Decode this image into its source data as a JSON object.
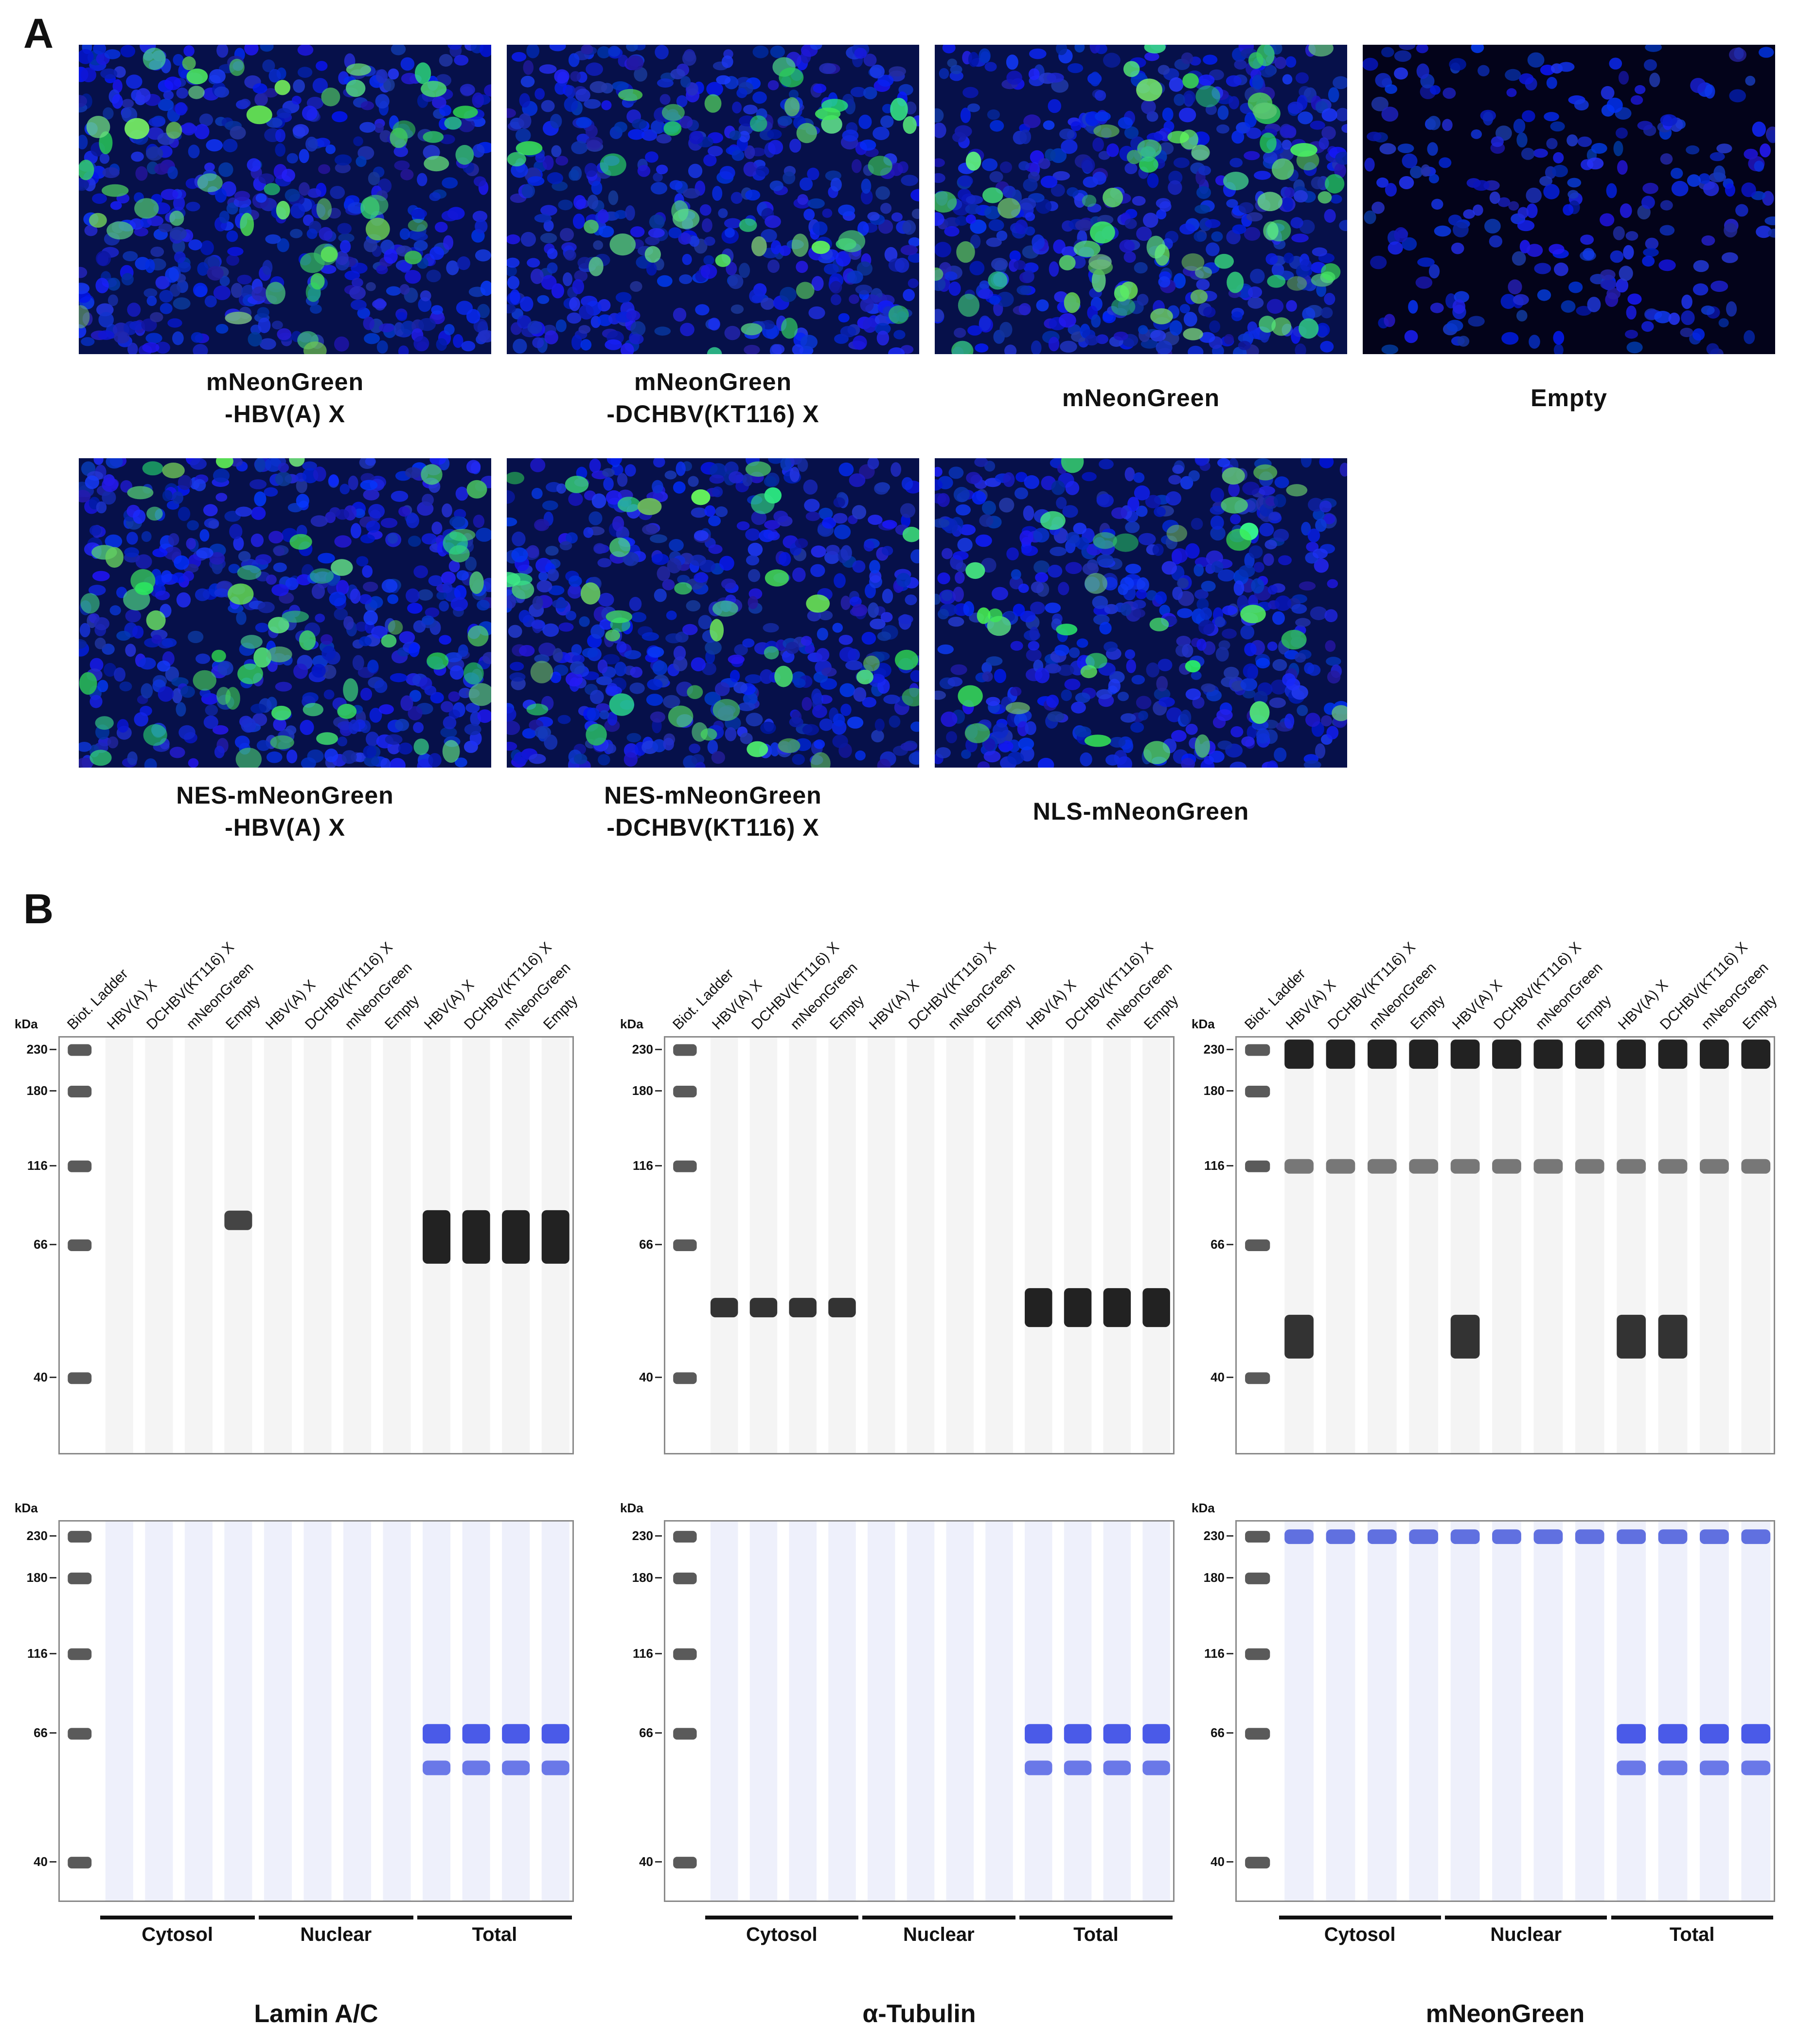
{
  "panelA": {
    "letter": "A",
    "images": [
      {
        "label1": "mNeonGreen",
        "label2": "-HBV(A) X",
        "green": 0.55
      },
      {
        "label1": "mNeonGreen",
        "label2": "-DCHBV(KT116) X",
        "green": 0.4
      },
      {
        "label1": "mNeonGreen",
        "label2": "",
        "green": 0.75
      },
      {
        "label1": "Empty",
        "label2": "",
        "green": 0.0
      },
      {
        "label1": "NES-mNeonGreen",
        "label2": "-HBV(A) X",
        "green": 0.6
      },
      {
        "label1": "NES-mNeonGreen",
        "label2": "-DCHBV(KT116) X",
        "green": 0.45
      },
      {
        "label1": "NLS-mNeonGreen",
        "label2": "",
        "green": 0.35
      }
    ]
  },
  "panelB": {
    "letter": "B",
    "kda": "kDa",
    "ladder_label": "Biot. Ladder",
    "lanes": [
      "HBV(A) X",
      "DCHBV(KT116) X",
      "mNeonGreen",
      "Empty",
      "HBV(A) X",
      "DCHBV(KT116) X",
      "mNeonGreen",
      "Empty",
      "HBV(A) X",
      "DCHBV(KT116) X",
      "mNeonGreen",
      "Empty"
    ],
    "markers": [
      "230",
      "180",
      "116",
      "66",
      "40"
    ],
    "groups": [
      "Cytosol",
      "Nuclear",
      "Total"
    ],
    "blots": [
      {
        "title": "Lamin A/C"
      },
      {
        "title": "α-Tubulin"
      },
      {
        "title": "mNeonGreen"
      }
    ]
  }
}
